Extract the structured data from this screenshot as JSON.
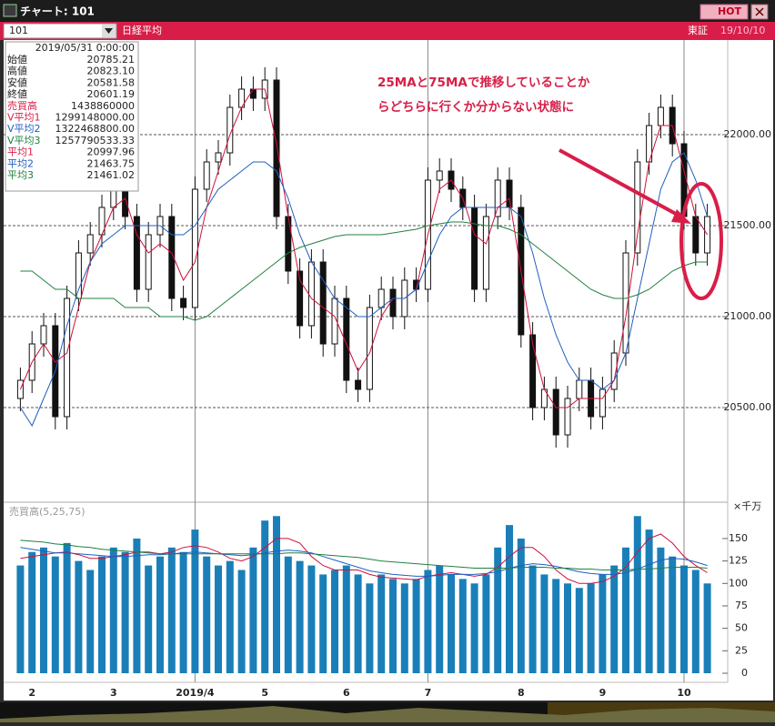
{
  "window": {
    "title": "チャート: 101",
    "hot": "HOT",
    "code": "101",
    "name": "日経平均",
    "market": "東証",
    "date": "19/10/10"
  },
  "info_panel": {
    "datetime": "2019/05/31  0:00:00",
    "rows": [
      {
        "label": "始値",
        "value": "20785.21"
      },
      {
        "label": "高値",
        "value": "20823.10"
      },
      {
        "label": "安値",
        "value": "20581.58"
      },
      {
        "label": "終値",
        "value": "20601.19"
      },
      {
        "label": "売買高",
        "value": "1438860000"
      },
      {
        "label": "V平均1",
        "value": "1299148000.00"
      },
      {
        "label": "V平均2",
        "value": "1322468800.00"
      },
      {
        "label": "V平均3",
        "value": "1257790533.33"
      },
      {
        "label": "平均1",
        "value": "20997.96"
      },
      {
        "label": "平均2",
        "value": "21463.75"
      },
      {
        "label": "平均3",
        "value": "21461.02"
      }
    ]
  },
  "chart_data": [
    {
      "type": "candlestick",
      "annotations": [
        "25MAと75MAで推移していることか",
        "らどちらに行くか分からない状態に"
      ],
      "categories": [
        null,
        "2",
        null,
        null,
        null,
        null,
        null,
        null,
        "3",
        null,
        null,
        null,
        null,
        null,
        null,
        "2019/4",
        null,
        null,
        null,
        null,
        null,
        "5",
        null,
        null,
        null,
        null,
        null,
        null,
        "6",
        null,
        null,
        null,
        null,
        null,
        null,
        "7",
        null,
        null,
        null,
        null,
        null,
        null,
        null,
        "8",
        null,
        null,
        null,
        null,
        null,
        null,
        "9",
        null,
        null,
        null,
        null,
        null,
        null,
        "10",
        null,
        null
      ],
      "open": [
        20550,
        20650,
        20850,
        20950,
        20450,
        21100,
        21350,
        21450,
        21600,
        21700,
        21550,
        21150,
        21450,
        21550,
        21100,
        21050,
        21700,
        21850,
        21900,
        22150,
        22250,
        22200,
        22300,
        21550,
        21250,
        20950,
        21300,
        20850,
        21100,
        20650,
        20600,
        21050,
        21150,
        21000,
        21200,
        21150,
        21750,
        21800,
        21700,
        21600,
        21150,
        21550,
        21750,
        21600,
        20900,
        20500,
        20600,
        20350,
        20550,
        20650,
        20450,
        20600,
        20800,
        21350,
        21850,
        22050,
        22150,
        21950,
        21550,
        21350
      ],
      "high": [
        20720,
        20920,
        21020,
        21020,
        21170,
        21420,
        21520,
        21670,
        21770,
        21770,
        21620,
        21520,
        21620,
        21620,
        21170,
        21770,
        21920,
        21970,
        22220,
        22320,
        22320,
        22370,
        22370,
        21620,
        21320,
        21370,
        21370,
        21170,
        21170,
        20720,
        21120,
        21220,
        21220,
        21270,
        21270,
        21820,
        21870,
        21870,
        21770,
        21670,
        21620,
        21820,
        21820,
        21670,
        20970,
        20670,
        20670,
        20620,
        20720,
        20720,
        20670,
        20870,
        21420,
        21920,
        22120,
        22220,
        22220,
        22020,
        21620,
        21620
      ],
      "low": [
        20480,
        20580,
        20780,
        20380,
        20380,
        21030,
        21280,
        21380,
        21530,
        21480,
        21080,
        21080,
        21380,
        21030,
        20980,
        20980,
        21630,
        21780,
        21830,
        22080,
        22130,
        22130,
        21480,
        21180,
        20880,
        20880,
        20780,
        20780,
        20580,
        20530,
        20530,
        20980,
        20930,
        20930,
        21080,
        21080,
        21680,
        21630,
        21530,
        21080,
        21080,
        21480,
        21530,
        20830,
        20430,
        20430,
        20280,
        20280,
        20480,
        20380,
        20380,
        20530,
        20730,
        21280,
        21780,
        21980,
        21880,
        21480,
        21280,
        21280
      ],
      "close": [
        20650,
        20850,
        20950,
        20450,
        21100,
        21350,
        21450,
        21600,
        21700,
        21550,
        21150,
        21450,
        21550,
        21100,
        21050,
        21700,
        21850,
        21900,
        22150,
        22250,
        22200,
        22300,
        21550,
        21250,
        20950,
        21300,
        20850,
        21100,
        20650,
        20600,
        21050,
        21150,
        21000,
        21200,
        21150,
        21750,
        21800,
        21700,
        21600,
        21150,
        21550,
        21750,
        21600,
        20900,
        20500,
        20600,
        20350,
        20550,
        20650,
        20450,
        20600,
        20800,
        21350,
        21850,
        22050,
        22150,
        21950,
        21550,
        21350,
        21550
      ],
      "series": [
        {
          "color": "#d0103a",
          "values": [
            20600,
            20750,
            20850,
            20750,
            20800,
            21050,
            21300,
            21450,
            21600,
            21650,
            21450,
            21350,
            21400,
            21350,
            21200,
            21300,
            21600,
            21800,
            22000,
            22150,
            22250,
            22250,
            21950,
            21550,
            21200,
            21100,
            21050,
            21000,
            20850,
            20700,
            20800,
            21000,
            21100,
            21100,
            21150,
            21450,
            21700,
            21750,
            21650,
            21450,
            21400,
            21600,
            21650,
            21250,
            20850,
            20600,
            20500,
            20500,
            20550,
            20550,
            20550,
            20650,
            21000,
            21450,
            21850,
            22050,
            22050,
            21800,
            21550,
            21450
          ]
        },
        {
          "color": "#2060c0",
          "values": [
            20500,
            20400,
            20550,
            20700,
            20950,
            21150,
            21300,
            21400,
            21450,
            21500,
            21500,
            21500,
            21500,
            21450,
            21450,
            21500,
            21600,
            21700,
            21750,
            21800,
            21850,
            21850,
            21800,
            21650,
            21450,
            21300,
            21200,
            21100,
            21050,
            21000,
            21000,
            21050,
            21100,
            21100,
            21150,
            21300,
            21450,
            21550,
            21600,
            21600,
            21600,
            21600,
            21600,
            21550,
            21350,
            21100,
            20900,
            20750,
            20650,
            20650,
            20600,
            20650,
            20800,
            21100,
            21400,
            21700,
            21850,
            21900,
            21750,
            21550
          ]
        },
        {
          "color": "#208040",
          "values": [
            21250,
            21250,
            21200,
            21150,
            21150,
            21100,
            21100,
            21100,
            21100,
            21050,
            21050,
            21050,
            21000,
            21000,
            21000,
            20980,
            21000,
            21050,
            21100,
            21150,
            21200,
            21250,
            21300,
            21350,
            21380,
            21400,
            21420,
            21440,
            21450,
            21450,
            21450,
            21450,
            21460,
            21470,
            21480,
            21500,
            21510,
            21520,
            21520,
            21510,
            21500,
            21500,
            21480,
            21450,
            21400,
            21350,
            21300,
            21250,
            21200,
            21150,
            21120,
            21100,
            21100,
            21120,
            21150,
            21200,
            21250,
            21280,
            21300,
            21300
          ]
        }
      ],
      "ylim": [
        20000,
        22500
      ],
      "yticks": [
        {
          "value": 20500,
          "label": "20500.00"
        },
        {
          "value": 21000,
          "label": "21000.00"
        },
        {
          "value": 21500,
          "label": "21500.00"
        },
        {
          "value": 22000,
          "label": "22000.00"
        }
      ],
      "grid": true
    },
    {
      "type": "bar",
      "title": "売買高(5,25,75)",
      "unit": "×千万",
      "color": "#1a7fb8",
      "values": [
        120,
        135,
        140,
        130,
        145,
        125,
        115,
        130,
        140,
        135,
        150,
        120,
        130,
        140,
        135,
        160,
        130,
        120,
        125,
        115,
        140,
        170,
        175,
        130,
        125,
        120,
        110,
        115,
        120,
        110,
        100,
        110,
        105,
        100,
        105,
        115,
        120,
        110,
        105,
        100,
        110,
        140,
        165,
        150,
        120,
        110,
        105,
        100,
        95,
        100,
        110,
        120,
        140,
        175,
        160,
        140,
        130,
        120,
        115,
        100
      ],
      "series": [
        {
          "color": "#d0103a",
          "values": [
            128,
            130,
            132,
            134,
            135,
            132,
            128,
            128,
            130,
            132,
            135,
            135,
            133,
            135,
            140,
            142,
            140,
            135,
            128,
            125,
            130,
            140,
            150,
            150,
            145,
            130,
            120,
            115,
            115,
            115,
            110,
            107,
            106,
            105,
            104,
            108,
            110,
            112,
            110,
            108,
            110,
            118,
            130,
            140,
            140,
            130,
            115,
            105,
            100,
            100,
            102,
            108,
            118,
            135,
            150,
            155,
            145,
            130,
            120,
            112
          ]
        },
        {
          "color": "#2060c0",
          "values": [
            140,
            138,
            136,
            134,
            134,
            133,
            132,
            131,
            130,
            130,
            131,
            132,
            132,
            133,
            134,
            135,
            134,
            133,
            132,
            131,
            132,
            134,
            136,
            137,
            136,
            134,
            130,
            126,
            122,
            118,
            114,
            112,
            110,
            109,
            108,
            108,
            109,
            110,
            110,
            110,
            111,
            113,
            117,
            120,
            122,
            121,
            119,
            116,
            113,
            111,
            110,
            110,
            112,
            116,
            121,
            126,
            128,
            127,
            124,
            120
          ]
        },
        {
          "color": "#208040",
          "values": [
            148,
            147,
            146,
            144,
            143,
            141,
            140,
            138,
            137,
            136,
            135,
            134,
            133,
            133,
            133,
            133,
            133,
            133,
            133,
            133,
            133,
            133,
            133,
            134,
            134,
            133,
            132,
            131,
            130,
            129,
            127,
            125,
            124,
            123,
            122,
            121,
            120,
            119,
            118,
            117,
            117,
            117,
            117,
            118,
            118,
            118,
            117,
            117,
            116,
            116,
            115,
            115,
            115,
            116,
            116,
            117,
            118,
            118,
            118,
            117
          ]
        }
      ],
      "ylim": [
        0,
        185
      ],
      "yticks": [
        0,
        25,
        50,
        75,
        100,
        125,
        150
      ]
    }
  ]
}
